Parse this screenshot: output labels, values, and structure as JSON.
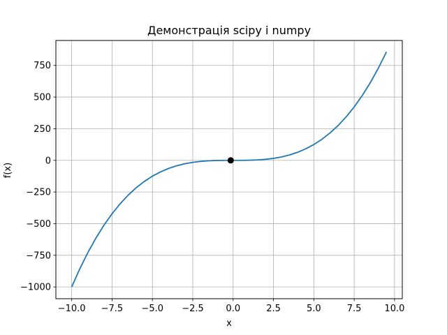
{
  "chart_data": {
    "type": "line",
    "title": "Демонстрація scipy i numpy",
    "xlabel": "x",
    "ylabel": "f(x)",
    "xlim": [
      -10.98,
      10.48
    ],
    "ylim": [
      -1092.9,
      946.9
    ],
    "grid": true,
    "x_ticks": [
      -10.0,
      -7.5,
      -5.0,
      -2.5,
      0.0,
      2.5,
      5.0,
      7.5,
      10.0
    ],
    "x_tick_labels": [
      "−10.0",
      "−7.5",
      "−5.0",
      "−2.5",
      "0.0",
      "2.5",
      "5.0",
      "7.5",
      "10.0"
    ],
    "y_ticks": [
      -1000,
      -750,
      -500,
      -250,
      0,
      250,
      500,
      750
    ],
    "y_tick_labels": [
      "−1000",
      "−750",
      "−500",
      "−250",
      "0",
      "250",
      "500",
      "750"
    ],
    "series": [
      {
        "color": "#1f77b4",
        "x": [
          -10.0,
          -9.5,
          -9.0,
          -8.5,
          -8.0,
          -7.5,
          -7.0,
          -6.5,
          -6.0,
          -5.5,
          -5.0,
          -4.5,
          -4.0,
          -3.5,
          -3.0,
          -2.5,
          -2.0,
          -1.5,
          -1.0,
          -0.5,
          0.0,
          0.5,
          1.0,
          1.5,
          2.0,
          2.5,
          3.0,
          3.5,
          4.0,
          4.5,
          5.0,
          5.5,
          6.0,
          6.5,
          7.0,
          7.5,
          8.0,
          8.5,
          9.0,
          9.5
        ],
        "y": [
          -1000,
          -857.4,
          -729,
          -614.1,
          -512,
          -421.9,
          -343,
          -274.6,
          -216,
          -166.4,
          -125,
          -91.1,
          -64,
          -42.9,
          -27,
          -15.6,
          -8,
          -3.4,
          -1,
          -0.1,
          0,
          0.1,
          1,
          3.4,
          8,
          15.6,
          27,
          42.9,
          64,
          91.1,
          125,
          166.4,
          216,
          274.6,
          343,
          421.9,
          512,
          614.1,
          729,
          857.4
        ]
      }
    ],
    "points": [
      {
        "x": -0.15,
        "y": 0,
        "color": "#000000"
      }
    ]
  }
}
